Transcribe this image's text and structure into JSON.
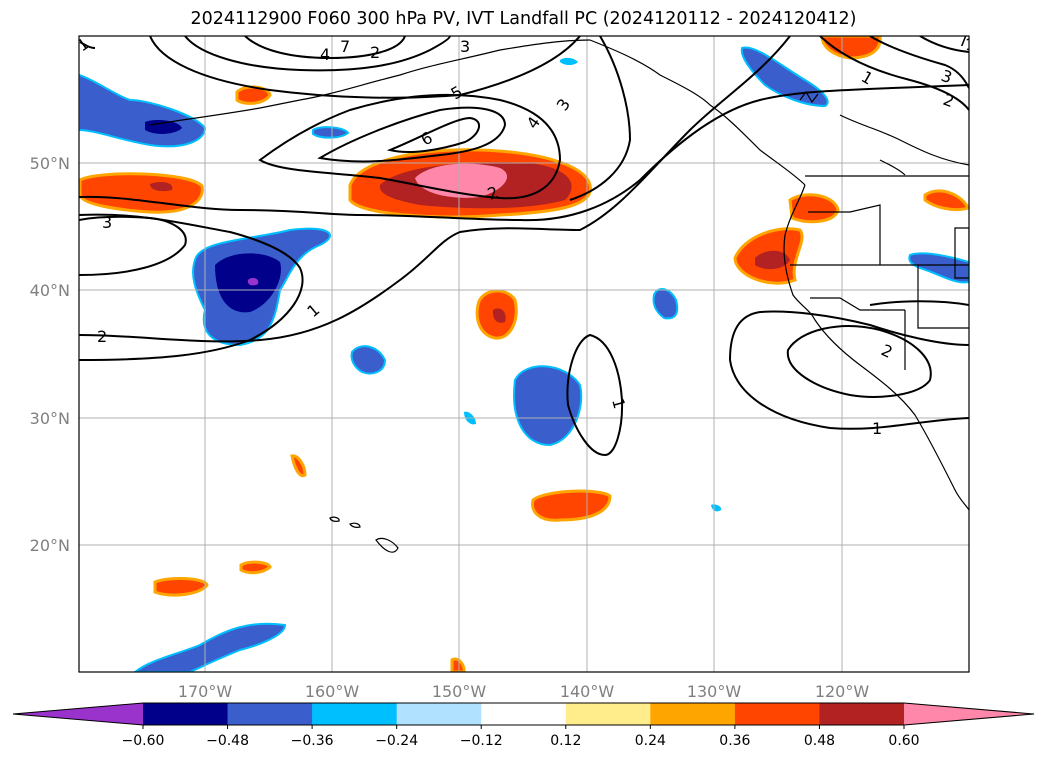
{
  "title": "2024112900 F060 300 hPa PV, IVT Landfall PC (2024120112 - 2024120412)",
  "map": {
    "projection": "PlateCarree",
    "lon_range": [
      -180,
      -110
    ],
    "lat_range": [
      10,
      60
    ],
    "lon_ticks": [
      "170°W",
      "160°W",
      "150°W",
      "140°W",
      "130°W",
      "120°W"
    ],
    "lat_ticks": [
      "50°N",
      "40°N",
      "30°N",
      "20°N"
    ],
    "gridlines": true
  },
  "contour_labels": [
    "1",
    "1",
    "1",
    "1",
    "1",
    "1",
    "2",
    "2",
    "2",
    "2",
    "2",
    "3",
    "3",
    "3",
    "3",
    "4",
    "4",
    "5",
    "6",
    "7",
    "7"
  ],
  "colorbar": {
    "levels": [
      "−0.60",
      "−0.48",
      "−0.36",
      "−0.24",
      "−0.12",
      "0.12",
      "0.24",
      "0.36",
      "0.48",
      "0.60"
    ],
    "colors": [
      "#9933cc",
      "#00008b",
      "#3a5fcd",
      "#00bfff",
      "#b0e2ff",
      "#ffffff",
      "#ffec8b",
      "#ffa500",
      "#ff4500",
      "#b22222",
      "#ff88aa"
    ],
    "extend": "both"
  }
}
